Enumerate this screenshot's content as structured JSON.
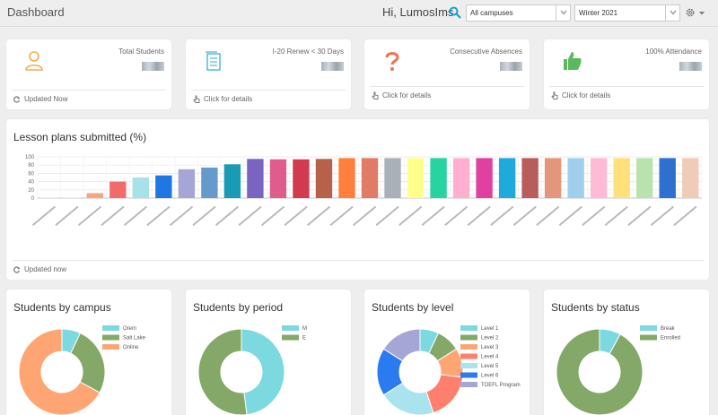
{
  "header": {
    "title": "Dashboard",
    "greeting": "Hi, LumosIms",
    "campus_select": "All campuses",
    "term_select": "Winter 2021"
  },
  "stats": [
    {
      "title": "Total Students",
      "footer": "Updated Now",
      "icon": "person-icon",
      "color": "#f0ad4e"
    },
    {
      "title": "I-20 Renew < 30 Days",
      "footer": "Click for details",
      "icon": "document-icon",
      "color": "#5bc0de"
    },
    {
      "title": "Consecutive Absences",
      "footer": "Click for details",
      "icon": "question-icon",
      "color": "#f0734a"
    },
    {
      "title": "100% Attendance",
      "footer": "Click for details",
      "icon": "thumbs-up-icon",
      "color": "#5cb85c"
    }
  ],
  "lesson_plans": {
    "title": "Lesson plans submitted (%)",
    "footer": "Updated now",
    "chart_data": {
      "type": "bar",
      "ylim": [
        0,
        100
      ],
      "yticks": [
        0,
        20,
        40,
        60,
        80,
        100
      ],
      "grid": true,
      "values": [
        1,
        1,
        12,
        40,
        50,
        55,
        70,
        74,
        82,
        95,
        94,
        94,
        95,
        97,
        97,
        97,
        97,
        97,
        97,
        97,
        97,
        97,
        97,
        97,
        97,
        97,
        97,
        97,
        97
      ],
      "colors": [
        "#e0e0e0",
        "#e0e0e0",
        "#f4a582",
        "#f26b6b",
        "#a6e3e9",
        "#1f77e4",
        "#a6a6d6",
        "#6699cc",
        "#1a9bb5",
        "#7b63c2",
        "#e05c8a",
        "#d23a50",
        "#b8614a",
        "#ff7f3f",
        "#e07b67",
        "#aab0b8",
        "#ffff8c",
        "#25d4a0",
        "#ffb0d0",
        "#e040a0",
        "#1eaadc",
        "#b85c5c",
        "#e3967a",
        "#a0cfee",
        "#ffbbd6",
        "#ffe07a",
        "#b9e3ac",
        "#2f6fcf",
        "#f0cbb8"
      ]
    }
  },
  "donuts": [
    {
      "title": "Students by campus",
      "chart_data": {
        "type": "pie",
        "labels": [
          "Orem",
          "Salt Lake",
          "Online"
        ],
        "values": [
          7,
          26,
          67
        ],
        "colors": [
          "#7dd9e0",
          "#84a867",
          "#ffa574"
        ]
      }
    },
    {
      "title": "Students by period",
      "chart_data": {
        "type": "pie",
        "labels": [
          "M",
          "E"
        ],
        "values": [
          48,
          52
        ],
        "colors": [
          "#7dd9e0",
          "#84a867"
        ]
      }
    },
    {
      "title": "Students by level",
      "chart_data": {
        "type": "pie",
        "labels": [
          "Level 1",
          "Level 2",
          "Level 3",
          "Level 4",
          "Level 5",
          "Level 6",
          "TOEFL Program"
        ],
        "values": [
          7,
          9,
          11,
          18,
          21,
          18,
          16
        ],
        "colors": [
          "#7dd9e0",
          "#84a867",
          "#ffa574",
          "#ff7f6e",
          "#a9e3ee",
          "#2a7bf0",
          "#a6a6d6"
        ]
      }
    },
    {
      "title": "Students by status",
      "chart_data": {
        "type": "pie",
        "labels": [
          "Break",
          "Enrolled"
        ],
        "values": [
          8,
          92
        ],
        "colors": [
          "#7dd9e0",
          "#84a867"
        ]
      }
    }
  ]
}
